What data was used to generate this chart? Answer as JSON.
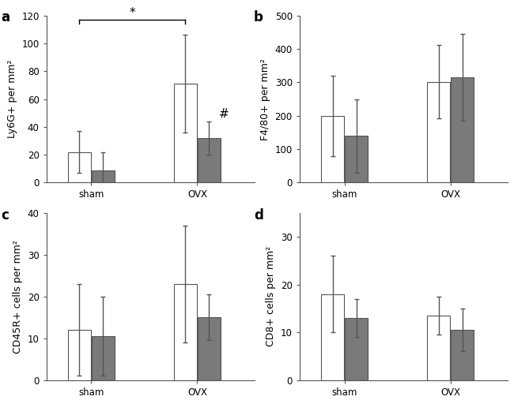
{
  "panels": [
    {
      "label": "a",
      "ylabel": "Ly6G+ per mm²",
      "ylim": [
        0,
        120
      ],
      "yticks": [
        0,
        20,
        40,
        60,
        80,
        100,
        120
      ],
      "groups": [
        "sham",
        "OVX"
      ],
      "bars": [
        {
          "value": 22,
          "err": 15,
          "color": "#ffffff"
        },
        {
          "value": 9,
          "err": 13,
          "color": "#7a7a7a"
        },
        {
          "value": 71,
          "err": 35,
          "color": "#ffffff"
        },
        {
          "value": 32,
          "err": 12,
          "color": "#7a7a7a"
        }
      ],
      "sig_bracket": true,
      "hash_annotation": true
    },
    {
      "label": "b",
      "ylabel": "F4/80+ per mm²",
      "ylim": [
        0,
        500
      ],
      "yticks": [
        0,
        100,
        200,
        300,
        400,
        500
      ],
      "groups": [
        "sham",
        "OVX"
      ],
      "bars": [
        {
          "value": 200,
          "err": 120,
          "color": "#ffffff"
        },
        {
          "value": 140,
          "err": 110,
          "color": "#7a7a7a"
        },
        {
          "value": 302,
          "err": 110,
          "color": "#ffffff"
        },
        {
          "value": 315,
          "err": 130,
          "color": "#7a7a7a"
        }
      ],
      "sig_bracket": false,
      "hash_annotation": false
    },
    {
      "label": "c",
      "ylabel": "CD45R+ cells per mm²",
      "ylim": [
        0,
        40
      ],
      "yticks": [
        0,
        10,
        20,
        30,
        40
      ],
      "groups": [
        "sham",
        "OVX"
      ],
      "bars": [
        {
          "value": 12,
          "err": 11,
          "color": "#ffffff"
        },
        {
          "value": 10.5,
          "err": 9.5,
          "color": "#7a7a7a"
        },
        {
          "value": 23,
          "err": 14,
          "color": "#ffffff"
        },
        {
          "value": 15,
          "err": 5.5,
          "color": "#7a7a7a"
        }
      ],
      "sig_bracket": false,
      "hash_annotation": false
    },
    {
      "label": "d",
      "ylabel": "CD8+ cells per mm²",
      "ylim": [
        0,
        35
      ],
      "yticks": [
        0,
        10,
        20,
        30
      ],
      "groups": [
        "sham",
        "OVX"
      ],
      "bars": [
        {
          "value": 18,
          "err": 8,
          "color": "#ffffff"
        },
        {
          "value": 13,
          "err": 4,
          "color": "#7a7a7a"
        },
        {
          "value": 13.5,
          "err": 4,
          "color": "#ffffff"
        },
        {
          "value": 10.5,
          "err": 4.5,
          "color": "#7a7a7a"
        }
      ],
      "sig_bracket": false,
      "hash_annotation": false
    }
  ],
  "bar_width": 0.28,
  "group_centers": [
    0.85,
    2.15
  ],
  "xlim": [
    0.3,
    2.85
  ],
  "edge_color": "#555555",
  "error_color": "#555555",
  "background_color": "#ffffff",
  "ylabel_fontsize": 9,
  "tick_fontsize": 8.5,
  "panel_label_fontsize": 12,
  "annot_fontsize": 11
}
